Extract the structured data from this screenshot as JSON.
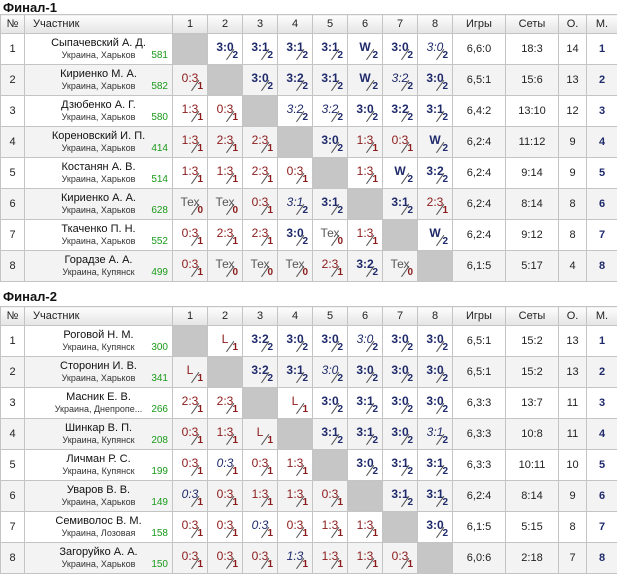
{
  "sections": [
    {
      "title": "Финал-1",
      "headers": [
        "№",
        "Участник",
        "1",
        "2",
        "3",
        "4",
        "5",
        "6",
        "7",
        "8",
        "Игры",
        "Сеты",
        "О.",
        "М."
      ],
      "players": [
        {
          "num": "1",
          "name": "Сыпачевский А. Д.",
          "city": "Украина, Харьков",
          "rating": "581",
          "games": "6,6:0",
          "sets": "18:3",
          "points": "14",
          "place": "1",
          "cells": [
            {
              "self": true
            },
            {
              "s": "3:0",
              "p": "2",
              "t": "win"
            },
            {
              "s": "3:1",
              "p": "2",
              "t": "win"
            },
            {
              "s": "3:1",
              "p": "2",
              "t": "win"
            },
            {
              "s": "3:1",
              "p": "2",
              "t": "win"
            },
            {
              "s": "W",
              "p": "2",
              "t": "win"
            },
            {
              "s": "3:0",
              "p": "2",
              "t": "win"
            },
            {
              "s": "3:0",
              "p": "2",
              "t": "it"
            }
          ]
        },
        {
          "num": "2",
          "name": "Кириенко М. А.",
          "city": "Украина, Харьков",
          "rating": "582",
          "games": "6,5:1",
          "sets": "15:6",
          "points": "13",
          "place": "2",
          "cells": [
            {
              "s": "0:3",
              "p": "1",
              "t": "loss"
            },
            {
              "self": true
            },
            {
              "s": "3:0",
              "p": "2",
              "t": "win"
            },
            {
              "s": "3:2",
              "p": "2",
              "t": "win"
            },
            {
              "s": "3:1",
              "p": "2",
              "t": "win"
            },
            {
              "s": "W",
              "p": "2",
              "t": "win"
            },
            {
              "s": "3:2",
              "p": "2",
              "t": "it"
            },
            {
              "s": "3:0",
              "p": "2",
              "t": "win"
            }
          ]
        },
        {
          "num": "3",
          "name": "Дзюбенко А. Г.",
          "city": "Украина, Харьков",
          "rating": "580",
          "games": "6,4:2",
          "sets": "13:10",
          "points": "12",
          "place": "3",
          "cells": [
            {
              "s": "1:3",
              "p": "1",
              "t": "loss"
            },
            {
              "s": "0:3",
              "p": "1",
              "t": "loss"
            },
            {
              "self": true
            },
            {
              "s": "3:2",
              "p": "2",
              "t": "it"
            },
            {
              "s": "3:2",
              "p": "2",
              "t": "it"
            },
            {
              "s": "3:0",
              "p": "2",
              "t": "win"
            },
            {
              "s": "3:2",
              "p": "2",
              "t": "win"
            },
            {
              "s": "3:1",
              "p": "2",
              "t": "win"
            }
          ]
        },
        {
          "num": "4",
          "name": "Кореновский И. П.",
          "city": "Украина, Харьков",
          "rating": "414",
          "games": "6,2:4",
          "sets": "11:12",
          "points": "9",
          "place": "4",
          "cells": [
            {
              "s": "1:3",
              "p": "1",
              "t": "loss"
            },
            {
              "s": "2:3",
              "p": "1",
              "t": "loss"
            },
            {
              "s": "2:3",
              "p": "1",
              "t": "loss"
            },
            {
              "self": true
            },
            {
              "s": "3:0",
              "p": "2",
              "t": "win"
            },
            {
              "s": "1:3",
              "p": "1",
              "t": "loss"
            },
            {
              "s": "0:3",
              "p": "1",
              "t": "loss"
            },
            {
              "s": "W",
              "p": "2",
              "t": "win"
            }
          ]
        },
        {
          "num": "5",
          "name": "Костанян А. В.",
          "city": "Украина, Харьков",
          "rating": "514",
          "games": "6,2:4",
          "sets": "9:14",
          "points": "9",
          "place": "5",
          "cells": [
            {
              "s": "1:3",
              "p": "1",
              "t": "loss"
            },
            {
              "s": "1:3",
              "p": "1",
              "t": "loss"
            },
            {
              "s": "2:3",
              "p": "1",
              "t": "loss"
            },
            {
              "s": "0:3",
              "p": "1",
              "t": "loss"
            },
            {
              "self": true
            },
            {
              "s": "1:3",
              "p": "1",
              "t": "loss"
            },
            {
              "s": "W",
              "p": "2",
              "t": "win"
            },
            {
              "s": "3:2",
              "p": "2",
              "t": "win"
            }
          ]
        },
        {
          "num": "6",
          "name": "Кириенко А. А.",
          "city": "Украина, Харьков",
          "rating": "628",
          "games": "6,2:4",
          "sets": "8:14",
          "points": "8",
          "place": "6",
          "cells": [
            {
              "s": "Тех",
              "p": "0",
              "t": "grey"
            },
            {
              "s": "Тех",
              "p": "0",
              "t": "grey"
            },
            {
              "s": "0:3",
              "p": "1",
              "t": "loss"
            },
            {
              "s": "3:1",
              "p": "2",
              "t": "it"
            },
            {
              "s": "3:1",
              "p": "2",
              "t": "win"
            },
            {
              "self": true
            },
            {
              "s": "3:1",
              "p": "2",
              "t": "win"
            },
            {
              "s": "2:3",
              "p": "1",
              "t": "loss"
            }
          ]
        },
        {
          "num": "7",
          "name": "Ткаченко П. Н.",
          "city": "Украина, Харьков",
          "rating": "552",
          "games": "6,2:4",
          "sets": "9:12",
          "points": "8",
          "place": "7",
          "cells": [
            {
              "s": "0:3",
              "p": "1",
              "t": "loss"
            },
            {
              "s": "2:3",
              "p": "1",
              "t": "loss"
            },
            {
              "s": "2:3",
              "p": "1",
              "t": "loss"
            },
            {
              "s": "3:0",
              "p": "2",
              "t": "win"
            },
            {
              "s": "Тех",
              "p": "0",
              "t": "grey"
            },
            {
              "s": "1:3",
              "p": "1",
              "t": "loss"
            },
            {
              "self": true
            },
            {
              "s": "W",
              "p": "2",
              "t": "win"
            }
          ]
        },
        {
          "num": "8",
          "name": "Горадзе А. А.",
          "city": "Украина, Купянск",
          "rating": "499",
          "games": "6,1:5",
          "sets": "5:17",
          "points": "4",
          "place": "8",
          "cells": [
            {
              "s": "0:3",
              "p": "1",
              "t": "loss"
            },
            {
              "s": "Тех",
              "p": "0",
              "t": "grey"
            },
            {
              "s": "Тех",
              "p": "0",
              "t": "grey"
            },
            {
              "s": "Тех",
              "p": "0",
              "t": "grey"
            },
            {
              "s": "2:3",
              "p": "1",
              "t": "loss"
            },
            {
              "s": "3:2",
              "p": "2",
              "t": "win"
            },
            {
              "s": "Тех",
              "p": "0",
              "t": "grey"
            },
            {
              "self": true
            }
          ]
        }
      ]
    },
    {
      "title": "Финал-2",
      "headers": [
        "№",
        "Участник",
        "1",
        "2",
        "3",
        "4",
        "5",
        "6",
        "7",
        "8",
        "Игры",
        "Сеты",
        "О.",
        "М."
      ],
      "players": [
        {
          "num": "1",
          "name": "Роговой Н. М.",
          "city": "Украина, Купянск",
          "rating": "300",
          "games": "6,5:1",
          "sets": "15:2",
          "points": "13",
          "place": "1",
          "cells": [
            {
              "self": true
            },
            {
              "s": "L",
              "p": "1",
              "t": "loss"
            },
            {
              "s": "3:2",
              "p": "2",
              "t": "win"
            },
            {
              "s": "3:0",
              "p": "2",
              "t": "win"
            },
            {
              "s": "3:0",
              "p": "2",
              "t": "win"
            },
            {
              "s": "3:0",
              "p": "2",
              "t": "it"
            },
            {
              "s": "3:0",
              "p": "2",
              "t": "win"
            },
            {
              "s": "3:0",
              "p": "2",
              "t": "win"
            }
          ]
        },
        {
          "num": "2",
          "name": "Сторонин И. В.",
          "city": "Украина, Харьков",
          "rating": "341",
          "games": "6,5:1",
          "sets": "15:2",
          "points": "13",
          "place": "2",
          "cells": [
            {
              "s": "L",
              "p": "1",
              "t": "loss"
            },
            {
              "self": true
            },
            {
              "s": "3:2",
              "p": "2",
              "t": "win"
            },
            {
              "s": "3:1",
              "p": "2",
              "t": "win"
            },
            {
              "s": "3:0",
              "p": "2",
              "t": "it"
            },
            {
              "s": "3:0",
              "p": "2",
              "t": "win"
            },
            {
              "s": "3:0",
              "p": "2",
              "t": "win"
            },
            {
              "s": "3:0",
              "p": "2",
              "t": "win"
            }
          ]
        },
        {
          "num": "3",
          "name": "Масник Е. В.",
          "city": "Украина, Днепропе...",
          "rating": "266",
          "games": "6,3:3",
          "sets": "13:7",
          "points": "11",
          "place": "3",
          "cells": [
            {
              "s": "2:3",
              "p": "1",
              "t": "loss"
            },
            {
              "s": "2:3",
              "p": "1",
              "t": "loss"
            },
            {
              "self": true
            },
            {
              "s": "L",
              "p": "1",
              "t": "loss"
            },
            {
              "s": "3:0",
              "p": "2",
              "t": "win"
            },
            {
              "s": "3:1",
              "p": "2",
              "t": "win"
            },
            {
              "s": "3:0",
              "p": "2",
              "t": "win"
            },
            {
              "s": "3:0",
              "p": "2",
              "t": "win"
            }
          ]
        },
        {
          "num": "4",
          "name": "Шинкар В. П.",
          "city": "Украина, Купянск",
          "rating": "208",
          "games": "6,3:3",
          "sets": "10:8",
          "points": "11",
          "place": "4",
          "cells": [
            {
              "s": "0:3",
              "p": "1",
              "t": "loss"
            },
            {
              "s": "1:3",
              "p": "1",
              "t": "loss"
            },
            {
              "s": "L",
              "p": "1",
              "t": "loss"
            },
            {
              "self": true
            },
            {
              "s": "3:1",
              "p": "2",
              "t": "win"
            },
            {
              "s": "3:1",
              "p": "2",
              "t": "win"
            },
            {
              "s": "3:0",
              "p": "2",
              "t": "win"
            },
            {
              "s": "3:1",
              "p": "2",
              "t": "it"
            }
          ]
        },
        {
          "num": "5",
          "name": "Личман Р. С.",
          "city": "Украина, Купянск",
          "rating": "199",
          "games": "6,3:3",
          "sets": "10:11",
          "points": "10",
          "place": "5",
          "cells": [
            {
              "s": "0:3",
              "p": "1",
              "t": "loss"
            },
            {
              "s": "0:3",
              "p": "1",
              "t": "it"
            },
            {
              "s": "0:3",
              "p": "1",
              "t": "loss"
            },
            {
              "s": "1:3",
              "p": "1",
              "t": "loss"
            },
            {
              "self": true
            },
            {
              "s": "3:0",
              "p": "2",
              "t": "win"
            },
            {
              "s": "3:1",
              "p": "2",
              "t": "win"
            },
            {
              "s": "3:1",
              "p": "2",
              "t": "win"
            }
          ]
        },
        {
          "num": "6",
          "name": "Уваров В. В.",
          "city": "Украина, Харьков",
          "rating": "149",
          "games": "6,2:4",
          "sets": "8:14",
          "points": "9",
          "place": "6",
          "cells": [
            {
              "s": "0:3",
              "p": "1",
              "t": "it"
            },
            {
              "s": "0:3",
              "p": "1",
              "t": "loss"
            },
            {
              "s": "1:3",
              "p": "1",
              "t": "loss"
            },
            {
              "s": "1:3",
              "p": "1",
              "t": "loss"
            },
            {
              "s": "0:3",
              "p": "1",
              "t": "loss"
            },
            {
              "self": true
            },
            {
              "s": "3:1",
              "p": "2",
              "t": "win"
            },
            {
              "s": "3:1",
              "p": "2",
              "t": "win"
            }
          ]
        },
        {
          "num": "7",
          "name": "Семиволос В. М.",
          "city": "Украина, Лозовая",
          "rating": "158",
          "games": "6,1:5",
          "sets": "5:15",
          "points": "8",
          "place": "7",
          "cells": [
            {
              "s": "0:3",
              "p": "1",
              "t": "loss"
            },
            {
              "s": "0:3",
              "p": "1",
              "t": "loss"
            },
            {
              "s": "0:3",
              "p": "1",
              "t": "it"
            },
            {
              "s": "0:3",
              "p": "1",
              "t": "loss"
            },
            {
              "s": "1:3",
              "p": "1",
              "t": "loss"
            },
            {
              "s": "1:3",
              "p": "1",
              "t": "loss"
            },
            {
              "self": true
            },
            {
              "s": "3:0",
              "p": "2",
              "t": "win"
            }
          ]
        },
        {
          "num": "8",
          "name": "Загоруйко А. А.",
          "city": "Украина, Харьков",
          "rating": "150",
          "games": "6,0:6",
          "sets": "2:18",
          "points": "7",
          "place": "8",
          "cells": [
            {
              "s": "0:3",
              "p": "1",
              "t": "loss"
            },
            {
              "s": "0:3",
              "p": "1",
              "t": "loss"
            },
            {
              "s": "0:3",
              "p": "1",
              "t": "loss"
            },
            {
              "s": "1:3",
              "p": "1",
              "t": "it"
            },
            {
              "s": "1:3",
              "p": "1",
              "t": "loss"
            },
            {
              "s": "1:3",
              "p": "1",
              "t": "loss"
            },
            {
              "s": "0:3",
              "p": "1",
              "t": "loss"
            },
            {
              "self": true
            }
          ]
        }
      ]
    }
  ]
}
